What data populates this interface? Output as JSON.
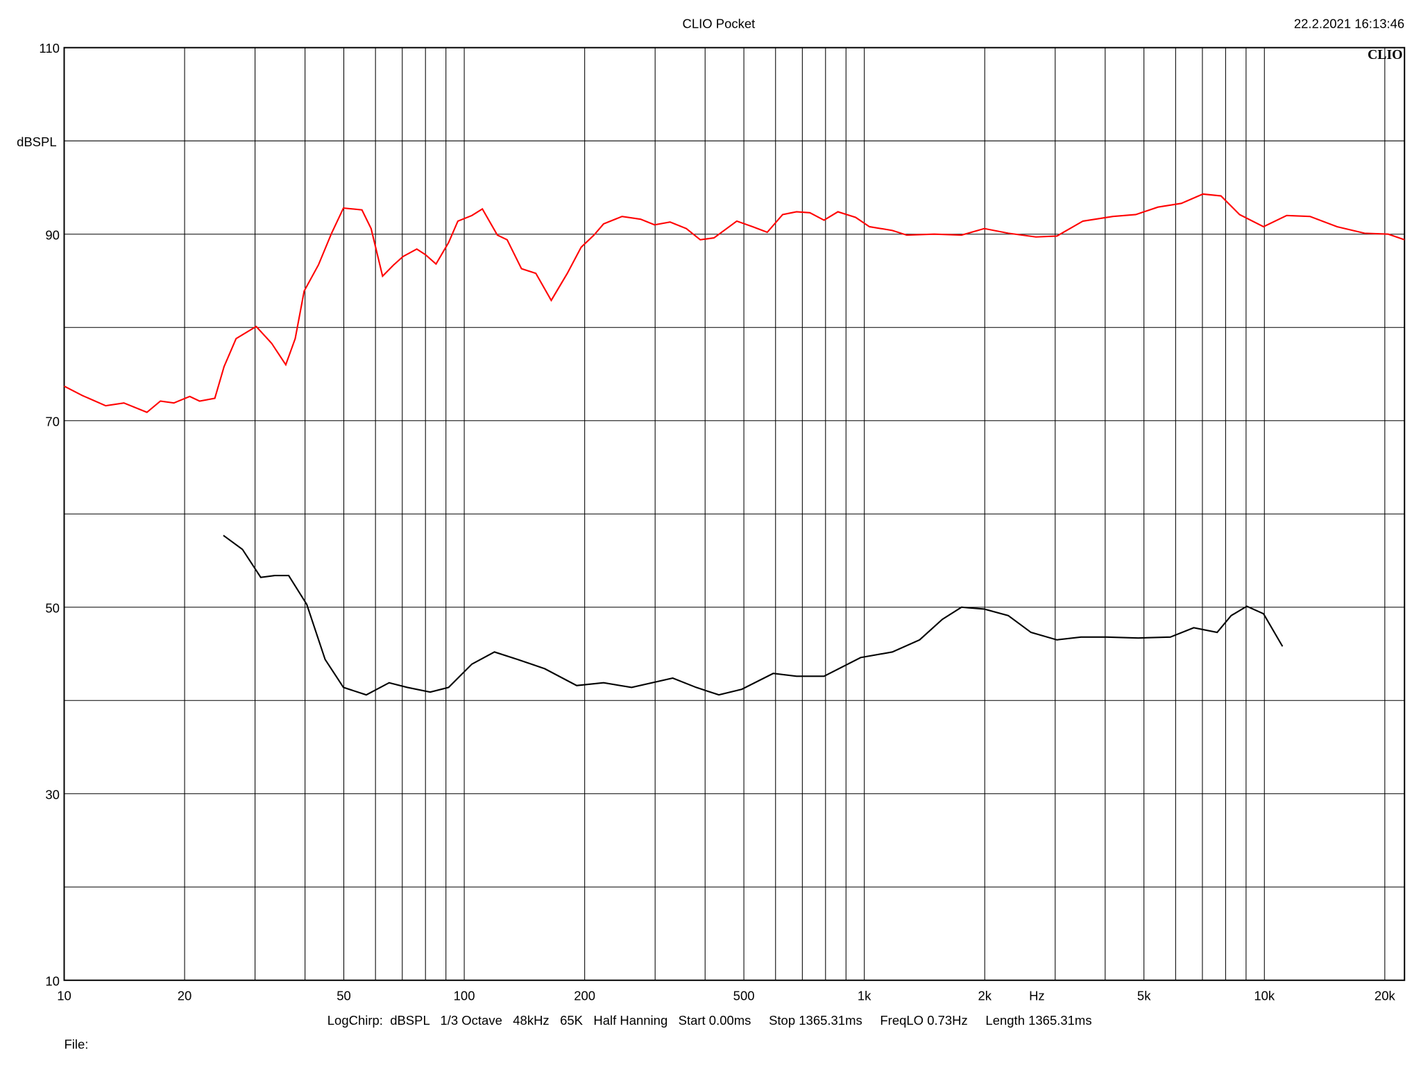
{
  "chart_data": {
    "type": "line",
    "title": "CLIO Pocket",
    "timestamp": "22.2.2021 16:13:46",
    "logo": "CLIO",
    "y_label": "dBSPL",
    "x_label": "Hz",
    "footer": "LogChirp:  dBSPL   1/3 Octave   48kHz   65K   Half Hanning   Start 0.00ms     Stop 1365.31ms     FreqLO 0.73Hz     Length 1365.31ms",
    "file_label": "File:",
    "x_log": true,
    "grid": true,
    "xlim": [
      10,
      22400
    ],
    "ylim": [
      10,
      110
    ],
    "yticks": [
      10,
      30,
      50,
      70,
      90,
      110
    ],
    "ygrid_minor": [
      20,
      40,
      60,
      80,
      100
    ],
    "xticks": [
      10,
      20,
      50,
      100,
      200,
      500,
      {
        "value": 1000,
        "label": "1k"
      },
      {
        "value": 2000,
        "label": "2k"
      },
      {
        "value": 5000,
        "label": "5k"
      },
      {
        "value": 10000,
        "label": "10k"
      },
      {
        "value": 20000,
        "label": "20k"
      }
    ],
    "xgrid_minor": [
      30,
      40,
      60,
      70,
      80,
      90,
      300,
      400,
      600,
      700,
      800,
      900,
      3000,
      4000,
      6000,
      7000,
      8000,
      9000
    ],
    "series": [
      {
        "color": "#ff0000",
        "x": [
          10,
          11.1,
          12.7,
          14.1,
          16.1,
          17.4,
          18.8,
          20.6,
          21.8,
          23.8,
          25.1,
          26.9,
          30.2,
          33.0,
          35.8,
          37.8,
          39.8,
          43.2,
          46.6,
          49.9,
          55.5,
          58.5,
          62.5,
          66.6,
          70.3,
          76.1,
          80.0,
          85.0,
          91.4,
          96.4,
          104.5,
          111,
          121,
          128,
          139,
          151,
          165,
          181,
          196,
          211,
          223,
          248,
          276,
          299,
          327,
          359,
          389,
          421,
          480,
          526,
          572,
          625,
          677,
          731,
          793,
          859,
          951,
          1030,
          1175,
          1277,
          1495,
          1750,
          1995,
          2290,
          2685,
          3030,
          3520,
          4180,
          4770,
          5420,
          6200,
          7020,
          7790,
          8670,
          9950,
          11370,
          13000,
          15200,
          17800,
          20400,
          22400
        ],
        "values": [
          73.7,
          72.7,
          71.6,
          71.9,
          70.9,
          72.1,
          71.9,
          72.6,
          72.1,
          72.4,
          75.8,
          78.8,
          80.1,
          78.3,
          76.0,
          78.8,
          83.9,
          86.7,
          90.1,
          92.8,
          92.6,
          90.6,
          85.5,
          86.7,
          87.6,
          88.4,
          87.8,
          86.8,
          89.1,
          91.4,
          92.0,
          92.7,
          89.9,
          89.4,
          86.3,
          85.8,
          82.9,
          85.8,
          88.6,
          89.9,
          91.1,
          91.9,
          91.6,
          91.0,
          91.3,
          90.6,
          89.4,
          89.6,
          91.4,
          90.8,
          90.2,
          92.1,
          92.4,
          92.3,
          91.5,
          92.4,
          91.8,
          90.8,
          90.4,
          89.9,
          90.0,
          89.9,
          90.6,
          90.1,
          89.7,
          89.8,
          91.4,
          91.9,
          92.1,
          92.9,
          93.3,
          94.3,
          94.1,
          92.1,
          90.8,
          92.0,
          91.9,
          90.8,
          90.1,
          90.0,
          89.4
        ]
      },
      {
        "color": "#000000",
        "x": [
          25,
          27.9,
          31,
          33.6,
          36.4,
          40.4,
          44.9,
          49.9,
          56.9,
          64.9,
          72.1,
          82.2,
          91.4,
          104.5,
          119,
          136,
          159,
          191,
          223,
          262,
          332,
          380,
          433,
          494,
          592,
          677,
          793,
          979,
          1175,
          1375,
          1567,
          1750,
          1995,
          2290,
          2610,
          3030,
          3480,
          4030,
          4840,
          5820,
          6660,
          7620,
          8260,
          9040,
          9950,
          11100
        ],
        "values": [
          57.7,
          56.2,
          53.2,
          53.4,
          53.4,
          50.3,
          44.4,
          41.4,
          40.6,
          41.9,
          41.4,
          40.9,
          41.4,
          43.9,
          45.2,
          44.4,
          43.4,
          41.6,
          41.9,
          41.4,
          42.4,
          41.4,
          40.6,
          41.2,
          42.9,
          42.6,
          42.6,
          44.6,
          45.2,
          46.5,
          48.7,
          50.0,
          49.8,
          49.1,
          47.3,
          46.5,
          46.8,
          46.8,
          46.7,
          46.8,
          47.8,
          47.3,
          49.1,
          50.1,
          49.3,
          45.8
        ]
      }
    ]
  }
}
